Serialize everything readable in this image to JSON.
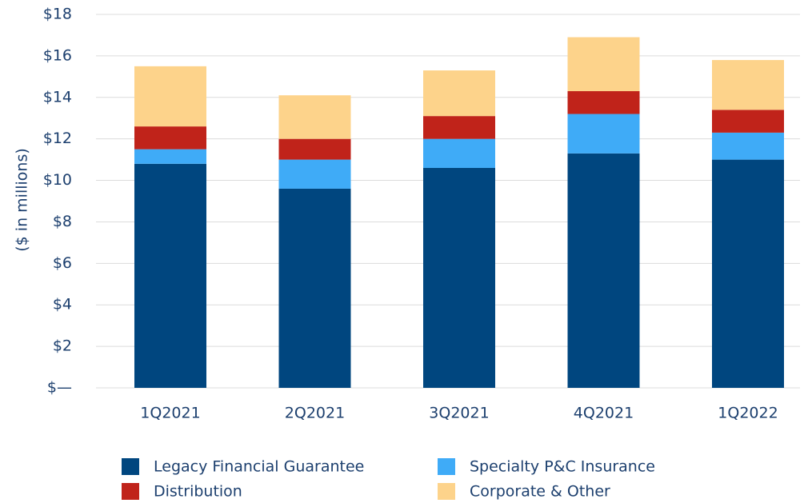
{
  "chart_data": {
    "type": "stacked_bar",
    "y_axis_label": "($ in millions)",
    "categories": [
      "1Q2021",
      "2Q2021",
      "3Q2021",
      "4Q2021",
      "1Q2022"
    ],
    "series": [
      {
        "name": "Legacy Financial Guarantee",
        "color": "#00467f",
        "values": [
          10.8,
          9.6,
          10.6,
          11.3,
          11.0
        ]
      },
      {
        "name": "Specialty P&C Insurance",
        "color": "#3fabf7",
        "values": [
          0.7,
          1.4,
          1.4,
          1.9,
          1.3
        ]
      },
      {
        "name": "Distribution",
        "color": "#c0231a",
        "values": [
          1.1,
          1.0,
          1.1,
          1.1,
          1.1
        ]
      },
      {
        "name": "Corporate & Other",
        "color": "#fdd38b",
        "values": [
          2.9,
          2.1,
          2.2,
          2.6,
          2.4
        ]
      }
    ],
    "ylim": [
      0,
      18
    ],
    "yticks": [
      {
        "value": 0,
        "label": "$—"
      },
      {
        "value": 2,
        "label": "$2"
      },
      {
        "value": 4,
        "label": "$4"
      },
      {
        "value": 6,
        "label": "$6"
      },
      {
        "value": 8,
        "label": "$8"
      },
      {
        "value": 10,
        "label": "$10"
      },
      {
        "value": 12,
        "label": "$12"
      },
      {
        "value": 14,
        "label": "$14"
      },
      {
        "value": 16,
        "label": "$16"
      },
      {
        "value": 18,
        "label": "$18"
      }
    ],
    "grid": true,
    "legend": "bottom"
  }
}
